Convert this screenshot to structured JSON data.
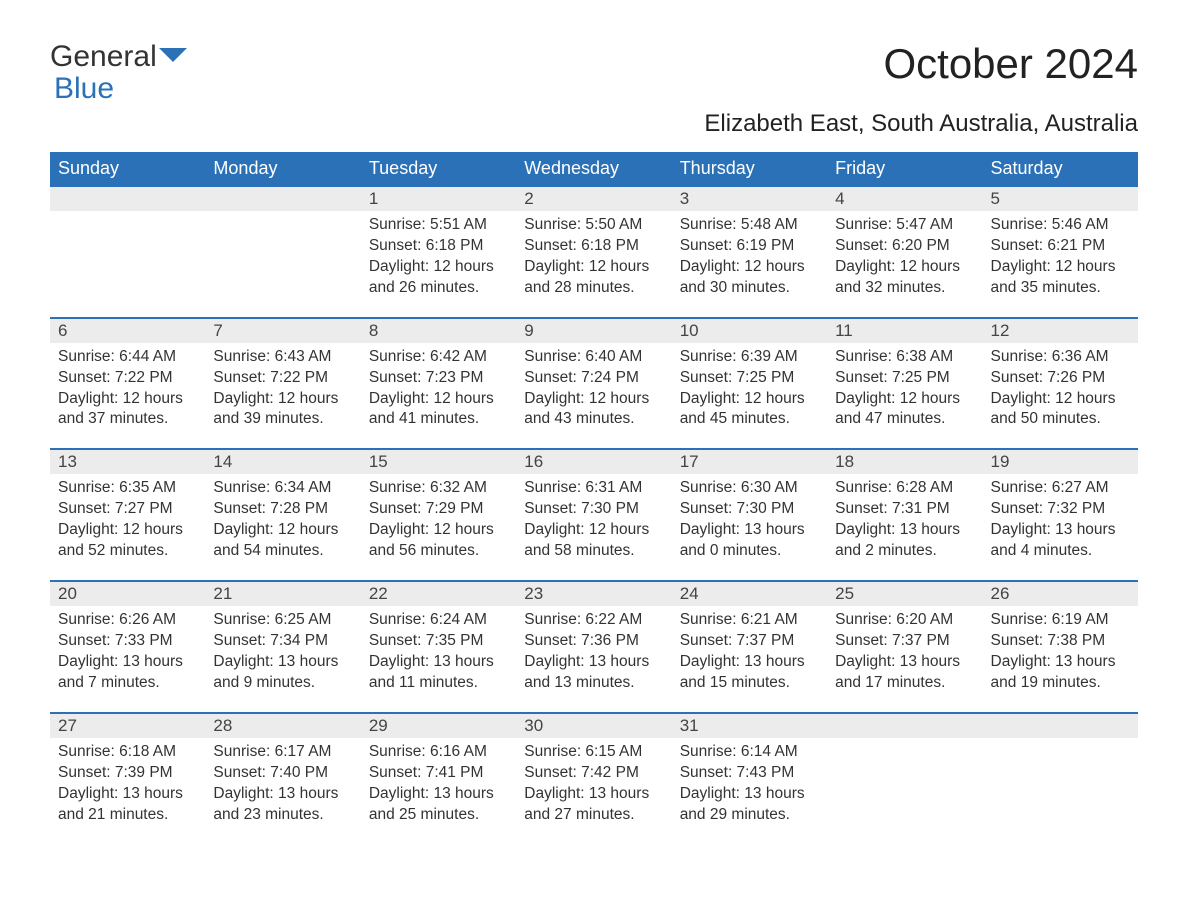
{
  "logo": {
    "word1": "General",
    "word2": "Blue"
  },
  "title": "October 2024",
  "subtitle": "Elizabeth East, South Australia, Australia",
  "colors": {
    "brand_blue": "#2b71b8",
    "header_bg": "#2b71b8",
    "header_text": "#ffffff",
    "daynum_bg": "#ececec",
    "row_border": "#2b71b8",
    "body_text": "#333333",
    "background": "#ffffff"
  },
  "calendar": {
    "type": "table",
    "columns": [
      "Sunday",
      "Monday",
      "Tuesday",
      "Wednesday",
      "Thursday",
      "Friday",
      "Saturday"
    ],
    "weeks": [
      {
        "days": [
          null,
          null,
          {
            "n": "1",
            "sunrise": "5:51 AM",
            "sunset": "6:18 PM",
            "dl1": "Daylight: 12 hours",
            "dl2": "and 26 minutes."
          },
          {
            "n": "2",
            "sunrise": "5:50 AM",
            "sunset": "6:18 PM",
            "dl1": "Daylight: 12 hours",
            "dl2": "and 28 minutes."
          },
          {
            "n": "3",
            "sunrise": "5:48 AM",
            "sunset": "6:19 PM",
            "dl1": "Daylight: 12 hours",
            "dl2": "and 30 minutes."
          },
          {
            "n": "4",
            "sunrise": "5:47 AM",
            "sunset": "6:20 PM",
            "dl1": "Daylight: 12 hours",
            "dl2": "and 32 minutes."
          },
          {
            "n": "5",
            "sunrise": "5:46 AM",
            "sunset": "6:21 PM",
            "dl1": "Daylight: 12 hours",
            "dl2": "and 35 minutes."
          }
        ]
      },
      {
        "days": [
          {
            "n": "6",
            "sunrise": "6:44 AM",
            "sunset": "7:22 PM",
            "dl1": "Daylight: 12 hours",
            "dl2": "and 37 minutes."
          },
          {
            "n": "7",
            "sunrise": "6:43 AM",
            "sunset": "7:22 PM",
            "dl1": "Daylight: 12 hours",
            "dl2": "and 39 minutes."
          },
          {
            "n": "8",
            "sunrise": "6:42 AM",
            "sunset": "7:23 PM",
            "dl1": "Daylight: 12 hours",
            "dl2": "and 41 minutes."
          },
          {
            "n": "9",
            "sunrise": "6:40 AM",
            "sunset": "7:24 PM",
            "dl1": "Daylight: 12 hours",
            "dl2": "and 43 minutes."
          },
          {
            "n": "10",
            "sunrise": "6:39 AM",
            "sunset": "7:25 PM",
            "dl1": "Daylight: 12 hours",
            "dl2": "and 45 minutes."
          },
          {
            "n": "11",
            "sunrise": "6:38 AM",
            "sunset": "7:25 PM",
            "dl1": "Daylight: 12 hours",
            "dl2": "and 47 minutes."
          },
          {
            "n": "12",
            "sunrise": "6:36 AM",
            "sunset": "7:26 PM",
            "dl1": "Daylight: 12 hours",
            "dl2": "and 50 minutes."
          }
        ]
      },
      {
        "days": [
          {
            "n": "13",
            "sunrise": "6:35 AM",
            "sunset": "7:27 PM",
            "dl1": "Daylight: 12 hours",
            "dl2": "and 52 minutes."
          },
          {
            "n": "14",
            "sunrise": "6:34 AM",
            "sunset": "7:28 PM",
            "dl1": "Daylight: 12 hours",
            "dl2": "and 54 minutes."
          },
          {
            "n": "15",
            "sunrise": "6:32 AM",
            "sunset": "7:29 PM",
            "dl1": "Daylight: 12 hours",
            "dl2": "and 56 minutes."
          },
          {
            "n": "16",
            "sunrise": "6:31 AM",
            "sunset": "7:30 PM",
            "dl1": "Daylight: 12 hours",
            "dl2": "and 58 minutes."
          },
          {
            "n": "17",
            "sunrise": "6:30 AM",
            "sunset": "7:30 PM",
            "dl1": "Daylight: 13 hours",
            "dl2": "and 0 minutes."
          },
          {
            "n": "18",
            "sunrise": "6:28 AM",
            "sunset": "7:31 PM",
            "dl1": "Daylight: 13 hours",
            "dl2": "and 2 minutes."
          },
          {
            "n": "19",
            "sunrise": "6:27 AM",
            "sunset": "7:32 PM",
            "dl1": "Daylight: 13 hours",
            "dl2": "and 4 minutes."
          }
        ]
      },
      {
        "days": [
          {
            "n": "20",
            "sunrise": "6:26 AM",
            "sunset": "7:33 PM",
            "dl1": "Daylight: 13 hours",
            "dl2": "and 7 minutes."
          },
          {
            "n": "21",
            "sunrise": "6:25 AM",
            "sunset": "7:34 PM",
            "dl1": "Daylight: 13 hours",
            "dl2": "and 9 minutes."
          },
          {
            "n": "22",
            "sunrise": "6:24 AM",
            "sunset": "7:35 PM",
            "dl1": "Daylight: 13 hours",
            "dl2": "and 11 minutes."
          },
          {
            "n": "23",
            "sunrise": "6:22 AM",
            "sunset": "7:36 PM",
            "dl1": "Daylight: 13 hours",
            "dl2": "and 13 minutes."
          },
          {
            "n": "24",
            "sunrise": "6:21 AM",
            "sunset": "7:37 PM",
            "dl1": "Daylight: 13 hours",
            "dl2": "and 15 minutes."
          },
          {
            "n": "25",
            "sunrise": "6:20 AM",
            "sunset": "7:37 PM",
            "dl1": "Daylight: 13 hours",
            "dl2": "and 17 minutes."
          },
          {
            "n": "26",
            "sunrise": "6:19 AM",
            "sunset": "7:38 PM",
            "dl1": "Daylight: 13 hours",
            "dl2": "and 19 minutes."
          }
        ]
      },
      {
        "days": [
          {
            "n": "27",
            "sunrise": "6:18 AM",
            "sunset": "7:39 PM",
            "dl1": "Daylight: 13 hours",
            "dl2": "and 21 minutes."
          },
          {
            "n": "28",
            "sunrise": "6:17 AM",
            "sunset": "7:40 PM",
            "dl1": "Daylight: 13 hours",
            "dl2": "and 23 minutes."
          },
          {
            "n": "29",
            "sunrise": "6:16 AM",
            "sunset": "7:41 PM",
            "dl1": "Daylight: 13 hours",
            "dl2": "and 25 minutes."
          },
          {
            "n": "30",
            "sunrise": "6:15 AM",
            "sunset": "7:42 PM",
            "dl1": "Daylight: 13 hours",
            "dl2": "and 27 minutes."
          },
          {
            "n": "31",
            "sunrise": "6:14 AM",
            "sunset": "7:43 PM",
            "dl1": "Daylight: 13 hours",
            "dl2": "and 29 minutes."
          },
          null,
          null
        ]
      }
    ],
    "labels": {
      "sunrise_prefix": "Sunrise: ",
      "sunset_prefix": "Sunset: "
    }
  }
}
